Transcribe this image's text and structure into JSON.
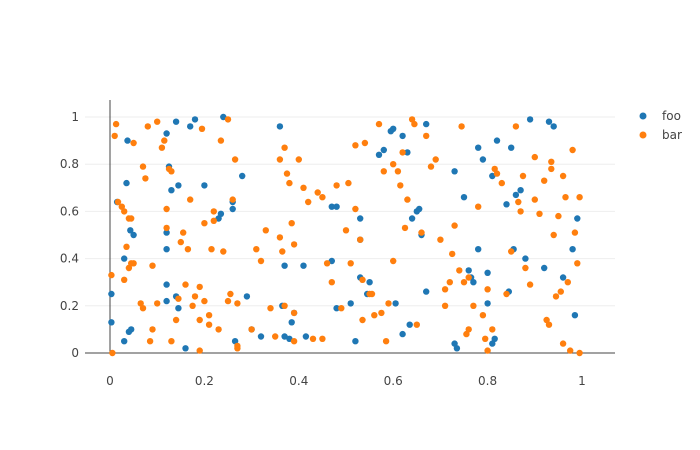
{
  "chart_data": {
    "type": "scatter",
    "title": "",
    "xlabel": "",
    "ylabel": "",
    "xlim": [
      -0.05,
      1.05
    ],
    "ylim": [
      -0.05,
      1.05
    ],
    "x_ticks": [
      0,
      0.2,
      0.4,
      0.6,
      0.8,
      1
    ],
    "x_tick_labels": [
      "0",
      "0.2",
      "0.4",
      "0.6",
      "0.8",
      "1"
    ],
    "y_ticks": [
      0,
      0.2,
      0.4,
      0.6,
      0.8,
      1
    ],
    "y_tick_labels": [
      "0",
      "0.2",
      "0.4",
      "0.6",
      "0.8",
      "1"
    ],
    "grid": "horizontal",
    "legend_position": "top-right",
    "series": [
      {
        "name": "foo",
        "color": "#1f77b4",
        "points": [
          [
            0.003,
            0.25
          ],
          [
            0.003,
            0.13
          ],
          [
            0.015,
            0.64
          ],
          [
            0.03,
            0.4
          ],
          [
            0.035,
            0.72
          ],
          [
            0.037,
            0.9
          ],
          [
            0.04,
            0.09
          ],
          [
            0.043,
            0.52
          ],
          [
            0.045,
            0.1
          ],
          [
            0.05,
            0.5
          ],
          [
            0.03,
            0.05
          ],
          [
            0.12,
            0.93
          ],
          [
            0.12,
            0.51
          ],
          [
            0.125,
            0.79
          ],
          [
            0.13,
            0.69
          ],
          [
            0.14,
            0.98
          ],
          [
            0.145,
            0.71
          ],
          [
            0.12,
            0.44
          ],
          [
            0.12,
            0.29
          ],
          [
            0.12,
            0.22
          ],
          [
            0.14,
            0.24
          ],
          [
            0.145,
            0.19
          ],
          [
            0.16,
            0.02
          ],
          [
            0.17,
            0.96
          ],
          [
            0.18,
            0.99
          ],
          [
            0.2,
            0.71
          ],
          [
            0.23,
            0.57
          ],
          [
            0.235,
            0.59
          ],
          [
            0.24,
            1.0
          ],
          [
            0.26,
            0.64
          ],
          [
            0.26,
            0.61
          ],
          [
            0.265,
            0.05
          ],
          [
            0.28,
            0.75
          ],
          [
            0.29,
            0.24
          ],
          [
            0.3,
            0.1
          ],
          [
            0.32,
            0.07
          ],
          [
            0.36,
            0.96
          ],
          [
            0.365,
            0.2
          ],
          [
            0.37,
            0.37
          ],
          [
            0.37,
            0.07
          ],
          [
            0.38,
            0.06
          ],
          [
            0.385,
            0.13
          ],
          [
            0.39,
            0.17
          ],
          [
            0.41,
            0.37
          ],
          [
            0.415,
            0.07
          ],
          [
            0.47,
            0.62
          ],
          [
            0.47,
            0.39
          ],
          [
            0.48,
            0.62
          ],
          [
            0.48,
            0.19
          ],
          [
            0.51,
            0.21
          ],
          [
            0.52,
            0.05
          ],
          [
            0.53,
            0.57
          ],
          [
            0.53,
            0.48
          ],
          [
            0.53,
            0.32
          ],
          [
            0.545,
            0.25
          ],
          [
            0.55,
            0.3
          ],
          [
            0.57,
            0.84
          ],
          [
            0.58,
            0.86
          ],
          [
            0.595,
            0.94
          ],
          [
            0.6,
            0.95
          ],
          [
            0.605,
            0.21
          ],
          [
            0.62,
            0.92
          ],
          [
            0.62,
            0.08
          ],
          [
            0.63,
            0.85
          ],
          [
            0.635,
            0.12
          ],
          [
            0.64,
            0.57
          ],
          [
            0.65,
            0.6
          ],
          [
            0.655,
            0.61
          ],
          [
            0.66,
            0.5
          ],
          [
            0.67,
            0.26
          ],
          [
            0.67,
            0.97
          ],
          [
            0.73,
            0.77
          ],
          [
            0.73,
            0.04
          ],
          [
            0.735,
            0.02
          ],
          [
            0.75,
            0.66
          ],
          [
            0.76,
            0.35
          ],
          [
            0.765,
            0.32
          ],
          [
            0.77,
            0.3
          ],
          [
            0.78,
            0.87
          ],
          [
            0.78,
            0.44
          ],
          [
            0.79,
            0.82
          ],
          [
            0.8,
            0.34
          ],
          [
            0.8,
            0.21
          ],
          [
            0.81,
            0.75
          ],
          [
            0.81,
            0.04
          ],
          [
            0.815,
            0.06
          ],
          [
            0.82,
            0.9
          ],
          [
            0.84,
            0.63
          ],
          [
            0.845,
            0.26
          ],
          [
            0.85,
            0.87
          ],
          [
            0.855,
            0.44
          ],
          [
            0.86,
            0.67
          ],
          [
            0.87,
            0.69
          ],
          [
            0.88,
            0.4
          ],
          [
            0.89,
            0.99
          ],
          [
            0.92,
            0.36
          ],
          [
            0.93,
            0.98
          ],
          [
            0.94,
            0.96
          ],
          [
            0.96,
            0.32
          ],
          [
            0.98,
            0.44
          ],
          [
            0.985,
            0.16
          ],
          [
            0.99,
            0.57
          ]
        ]
      },
      {
        "name": "bar",
        "color": "#ff7f0e",
        "points": [
          [
            0.003,
            0.33
          ],
          [
            0.005,
            0.0
          ],
          [
            0.01,
            0.92
          ],
          [
            0.013,
            0.97
          ],
          [
            0.017,
            0.64
          ],
          [
            0.025,
            0.62
          ],
          [
            0.03,
            0.6
          ],
          [
            0.03,
            0.31
          ],
          [
            0.035,
            0.45
          ],
          [
            0.04,
            0.36
          ],
          [
            0.04,
            0.57
          ],
          [
            0.045,
            0.38
          ],
          [
            0.05,
            0.89
          ],
          [
            0.05,
            0.38
          ],
          [
            0.065,
            0.21
          ],
          [
            0.07,
            0.19
          ],
          [
            0.07,
            0.79
          ],
          [
            0.075,
            0.74
          ],
          [
            0.08,
            0.96
          ],
          [
            0.085,
            0.05
          ],
          [
            0.09,
            0.1
          ],
          [
            0.09,
            0.37
          ],
          [
            0.1,
            0.98
          ],
          [
            0.11,
            0.87
          ],
          [
            0.115,
            0.9
          ],
          [
            0.12,
            0.61
          ],
          [
            0.12,
            0.53
          ],
          [
            0.125,
            0.78
          ],
          [
            0.13,
            0.77
          ],
          [
            0.13,
            0.05
          ],
          [
            0.14,
            0.14
          ],
          [
            0.145,
            0.23
          ],
          [
            0.15,
            0.47
          ],
          [
            0.155,
            0.51
          ],
          [
            0.16,
            0.29
          ],
          [
            0.165,
            0.44
          ],
          [
            0.17,
            0.65
          ],
          [
            0.175,
            0.2
          ],
          [
            0.18,
            0.24
          ],
          [
            0.19,
            0.14
          ],
          [
            0.19,
            0.28
          ],
          [
            0.195,
            0.95
          ],
          [
            0.2,
            0.55
          ],
          [
            0.2,
            0.22
          ],
          [
            0.21,
            0.12
          ],
          [
            0.21,
            0.16
          ],
          [
            0.215,
            0.44
          ],
          [
            0.22,
            0.6
          ],
          [
            0.22,
            0.56
          ],
          [
            0.23,
            0.1
          ],
          [
            0.235,
            0.9
          ],
          [
            0.24,
            0.43
          ],
          [
            0.25,
            0.22
          ],
          [
            0.25,
            0.99
          ],
          [
            0.255,
            0.25
          ],
          [
            0.26,
            0.65
          ],
          [
            0.265,
            0.82
          ],
          [
            0.27,
            0.02
          ],
          [
            0.27,
            0.03
          ],
          [
            0.3,
            0.1
          ],
          [
            0.31,
            0.44
          ],
          [
            0.32,
            0.39
          ],
          [
            0.33,
            0.52
          ],
          [
            0.34,
            0.19
          ],
          [
            0.35,
            0.07
          ],
          [
            0.36,
            0.82
          ],
          [
            0.36,
            0.49
          ],
          [
            0.365,
            0.43
          ],
          [
            0.37,
            0.87
          ],
          [
            0.37,
            0.2
          ],
          [
            0.375,
            0.76
          ],
          [
            0.38,
            0.72
          ],
          [
            0.385,
            0.55
          ],
          [
            0.39,
            0.46
          ],
          [
            0.39,
            0.17
          ],
          [
            0.4,
            0.82
          ],
          [
            0.41,
            0.7
          ],
          [
            0.42,
            0.64
          ],
          [
            0.43,
            0.06
          ],
          [
            0.44,
            0.68
          ],
          [
            0.45,
            0.06
          ],
          [
            0.46,
            0.38
          ],
          [
            0.47,
            0.3
          ],
          [
            0.48,
            0.71
          ],
          [
            0.49,
            0.19
          ],
          [
            0.5,
            0.52
          ],
          [
            0.505,
            0.72
          ],
          [
            0.51,
            0.38
          ],
          [
            0.52,
            0.61
          ],
          [
            0.52,
            0.88
          ],
          [
            0.53,
            0.48
          ],
          [
            0.535,
            0.14
          ],
          [
            0.54,
            0.89
          ],
          [
            0.55,
            0.25
          ],
          [
            0.555,
            0.25
          ],
          [
            0.56,
            0.16
          ],
          [
            0.57,
            0.97
          ],
          [
            0.575,
            0.17
          ],
          [
            0.58,
            0.77
          ],
          [
            0.585,
            0.05
          ],
          [
            0.59,
            0.21
          ],
          [
            0.6,
            0.8
          ],
          [
            0.61,
            0.77
          ],
          [
            0.615,
            0.71
          ],
          [
            0.62,
            0.85
          ],
          [
            0.625,
            0.53
          ],
          [
            0.63,
            0.65
          ],
          [
            0.64,
            0.99
          ],
          [
            0.645,
            0.97
          ],
          [
            0.65,
            0.12
          ],
          [
            0.66,
            0.51
          ],
          [
            0.67,
            0.92
          ],
          [
            0.68,
            0.79
          ],
          [
            0.69,
            0.82
          ],
          [
            0.7,
            0.48
          ],
          [
            0.71,
            0.27
          ],
          [
            0.72,
            0.3
          ],
          [
            0.725,
            0.42
          ],
          [
            0.73,
            0.54
          ],
          [
            0.74,
            0.35
          ],
          [
            0.745,
            0.96
          ],
          [
            0.75,
            0.3
          ],
          [
            0.755,
            0.08
          ],
          [
            0.76,
            0.32
          ],
          [
            0.77,
            0.2
          ],
          [
            0.78,
            0.62
          ],
          [
            0.79,
            0.16
          ],
          [
            0.795,
            0.06
          ],
          [
            0.8,
            0.27
          ],
          [
            0.8,
            0.01
          ],
          [
            0.81,
            0.1
          ],
          [
            0.815,
            0.78
          ],
          [
            0.82,
            0.76
          ],
          [
            0.83,
            0.72
          ],
          [
            0.84,
            0.25
          ],
          [
            0.85,
            0.43
          ],
          [
            0.86,
            0.96
          ],
          [
            0.865,
            0.64
          ],
          [
            0.87,
            0.6
          ],
          [
            0.875,
            0.75
          ],
          [
            0.88,
            0.36
          ],
          [
            0.89,
            0.29
          ],
          [
            0.9,
            0.65
          ],
          [
            0.91,
            0.59
          ],
          [
            0.92,
            0.73
          ],
          [
            0.925,
            0.14
          ],
          [
            0.93,
            0.12
          ],
          [
            0.935,
            0.78
          ],
          [
            0.94,
            0.5
          ],
          [
            0.945,
            0.24
          ],
          [
            0.95,
            0.58
          ],
          [
            0.955,
            0.26
          ],
          [
            0.96,
            0.04
          ],
          [
            0.965,
            0.66
          ],
          [
            0.97,
            0.3
          ],
          [
            0.975,
            0.01
          ],
          [
            0.98,
            0.86
          ],
          [
            0.985,
            0.51
          ],
          [
            0.99,
            0.38
          ],
          [
            0.995,
            0.0
          ],
          [
            0.995,
            0.66
          ],
          [
            0.045,
            0.57
          ],
          [
            0.1,
            0.21
          ],
          [
            0.19,
            0.01
          ],
          [
            0.27,
            0.21
          ],
          [
            0.39,
            0.05
          ],
          [
            0.535,
            0.31
          ],
          [
            0.6,
            0.39
          ],
          [
            0.71,
            0.2
          ],
          [
            0.76,
            0.1
          ],
          [
            0.9,
            0.83
          ],
          [
            0.96,
            0.75
          ],
          [
            0.935,
            0.81
          ],
          [
            0.45,
            0.66
          ]
        ]
      }
    ]
  }
}
